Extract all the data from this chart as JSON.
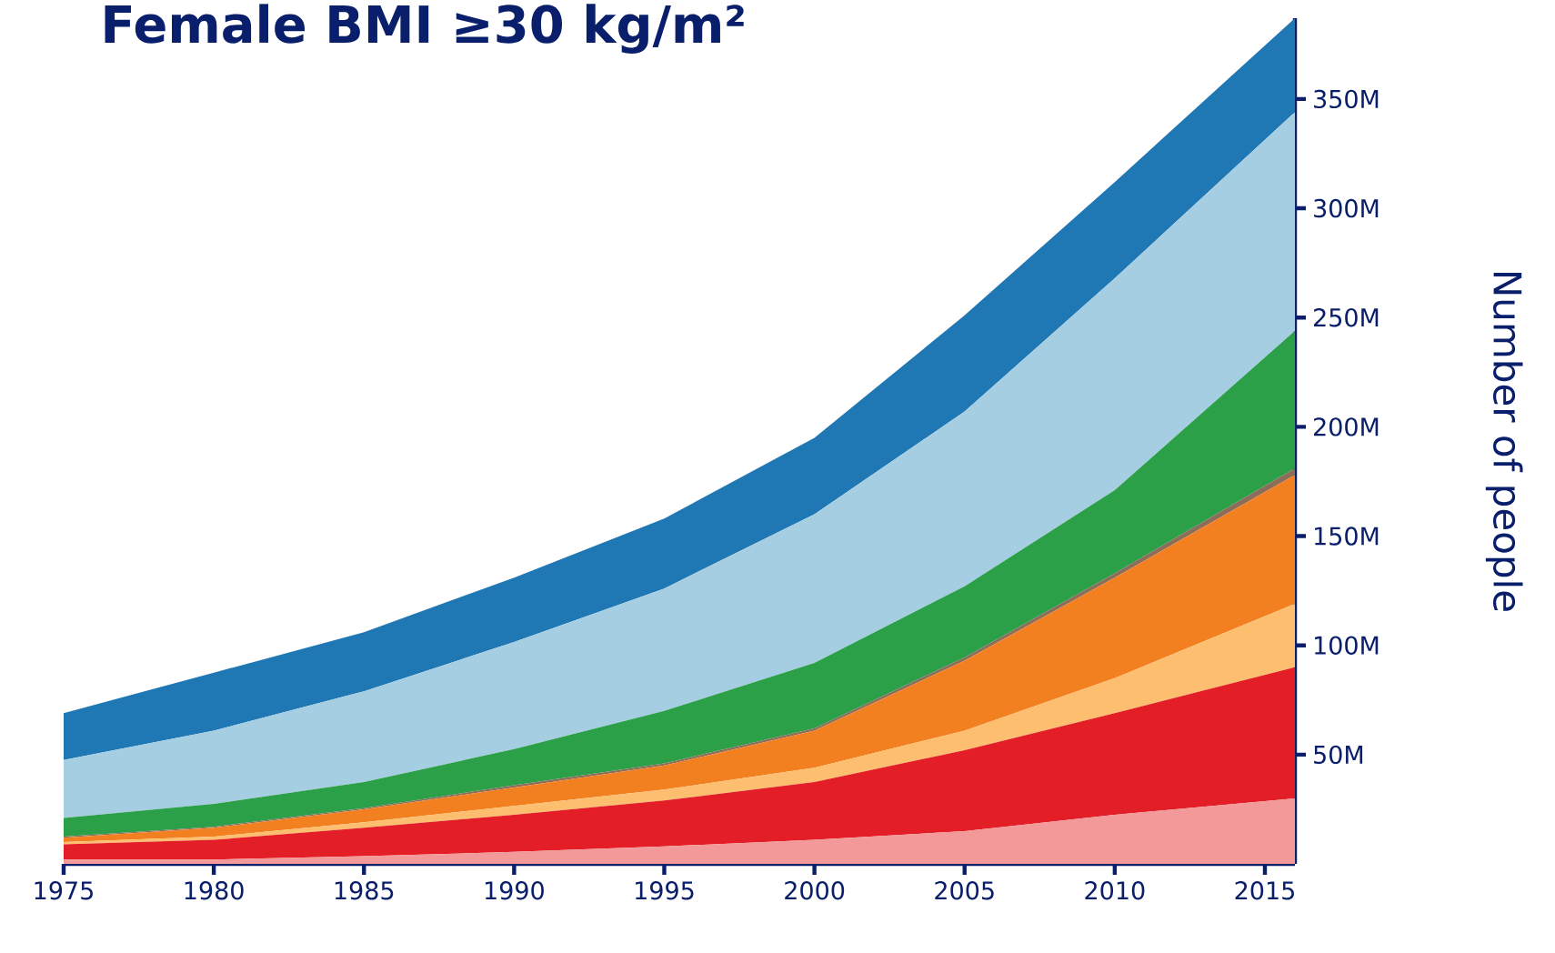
{
  "chart_data": {
    "type": "area",
    "title": "Female BMI ≥30 kg/m²",
    "ylabel": "Number of people",
    "x": [
      1975,
      1980,
      1985,
      1990,
      1995,
      2000,
      2005,
      2010,
      2016
    ],
    "stacked": true,
    "series": [
      {
        "color": "#f4999a",
        "values": [
          2,
          2,
          3.5,
          5.5,
          8,
          11,
          15,
          22.5,
          30
        ]
      },
      {
        "color": "#e31e26",
        "values": [
          7,
          9,
          13,
          17,
          21,
          26.5,
          37,
          46.5,
          60
        ]
      },
      {
        "color": "#fdbf6f",
        "values": [
          1,
          1.5,
          2.5,
          4,
          5,
          6.5,
          9,
          16,
          29
        ]
      },
      {
        "color": "#f38020",
        "values": [
          2,
          4,
          6,
          8.5,
          11,
          17,
          32,
          46,
          59
        ]
      },
      {
        "color": "#8c6d5a",
        "values": [
          0.5,
          0.5,
          0.5,
          1,
          1,
          1,
          1.5,
          2,
          3
        ]
      },
      {
        "color": "#2ca048",
        "values": [
          8.5,
          10.5,
          12,
          16.5,
          24,
          30,
          32.5,
          38,
          63
        ]
      },
      {
        "color": "#a6cee3",
        "values": [
          26.5,
          33.5,
          41.5,
          49,
          56,
          68,
          80,
          97,
          100
        ]
      },
      {
        "color": "#1f78b4",
        "values": [
          21.5,
          26.5,
          27,
          29.5,
          32,
          35,
          44,
          44,
          43
        ]
      }
    ],
    "xlim": [
      1975,
      2016
    ],
    "ylim": [
      0,
      387
    ],
    "xticks": [
      1975,
      1980,
      1985,
      1990,
      1995,
      2000,
      2005,
      2010,
      2015
    ],
    "yticks": [
      {
        "value": 50,
        "label": "50M"
      },
      {
        "value": 100,
        "label": "100M"
      },
      {
        "value": 150,
        "label": "150M"
      },
      {
        "value": 200,
        "label": "200M"
      },
      {
        "value": 250,
        "label": "250M"
      },
      {
        "value": 300,
        "label": "300M"
      },
      {
        "value": 350,
        "label": "350M"
      }
    ]
  }
}
